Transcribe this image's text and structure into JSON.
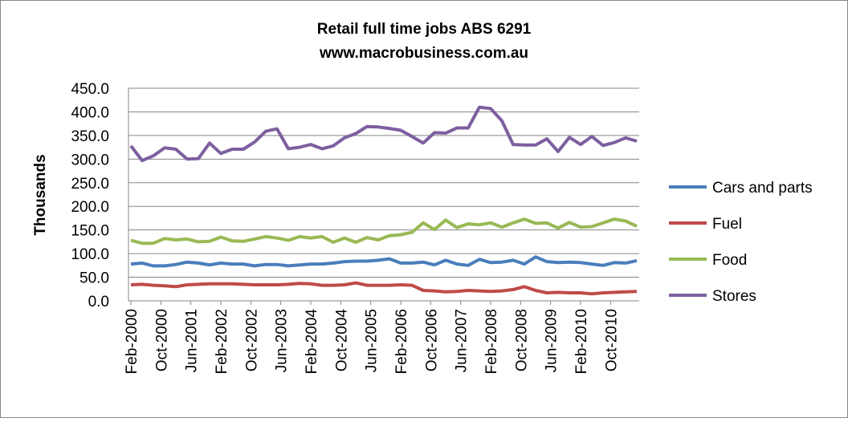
{
  "chart_data": {
    "type": "line",
    "title": "Retail full time jobs ABS 6291",
    "subtitle": "www.macrobusiness.com.au",
    "y_label": "Thousands",
    "x": [
      "2000-02",
      "2000-05",
      "2000-08",
      "2000-11",
      "2001-02",
      "2001-05",
      "2001-08",
      "2001-11",
      "2002-02",
      "2002-05",
      "2002-08",
      "2002-11",
      "2003-02",
      "2003-05",
      "2003-08",
      "2003-11",
      "2004-02",
      "2004-05",
      "2004-08",
      "2004-11",
      "2005-02",
      "2005-05",
      "2005-08",
      "2005-11",
      "2006-02",
      "2006-05",
      "2006-08",
      "2006-11",
      "2007-02",
      "2007-05",
      "2007-08",
      "2007-11",
      "2008-02",
      "2008-05",
      "2008-08",
      "2008-11",
      "2009-02",
      "2009-05",
      "2009-08",
      "2009-11",
      "2010-02",
      "2010-05",
      "2010-08",
      "2010-11",
      "2011-02",
      "2011-05"
    ],
    "xlim": [
      "2000-02",
      "2011-05"
    ],
    "xticks": [
      {
        "value": "2000-02",
        "label": "Feb-2000"
      },
      {
        "value": "2000-10",
        "label": "Oct-2000"
      },
      {
        "value": "2001-06",
        "label": "Jun-2001"
      },
      {
        "value": "2002-02",
        "label": "Feb-2002"
      },
      {
        "value": "2002-10",
        "label": "Oct-2002"
      },
      {
        "value": "2003-06",
        "label": "Jun-2003"
      },
      {
        "value": "2004-02",
        "label": "Feb-2004"
      },
      {
        "value": "2004-10",
        "label": "Oct-2004"
      },
      {
        "value": "2005-06",
        "label": "Jun-2005"
      },
      {
        "value": "2006-02",
        "label": "Feb-2006"
      },
      {
        "value": "2006-10",
        "label": "Oct-2006"
      },
      {
        "value": "2007-06",
        "label": "Jun-2007"
      },
      {
        "value": "2008-02",
        "label": "Feb-2008"
      },
      {
        "value": "2008-10",
        "label": "Oct-2008"
      },
      {
        "value": "2009-06",
        "label": "Jun-2009"
      },
      {
        "value": "2010-02",
        "label": "Feb-2010"
      },
      {
        "value": "2010-10",
        "label": "Oct-2010"
      }
    ],
    "ylim": [
      0,
      450
    ],
    "yticks": [
      {
        "value": 0,
        "label": "0.0"
      },
      {
        "value": 50,
        "label": "50.0"
      },
      {
        "value": 100,
        "label": "100.0"
      },
      {
        "value": 150,
        "label": "150.0"
      },
      {
        "value": 200,
        "label": "200.0"
      },
      {
        "value": 250,
        "label": "250.0"
      },
      {
        "value": 300,
        "label": "300.0"
      },
      {
        "value": 350,
        "label": "350.0"
      },
      {
        "value": 400,
        "label": "400.0"
      },
      {
        "value": 450,
        "label": "450.0"
      }
    ],
    "grid": true,
    "legend": "right",
    "series": [
      {
        "name": "Cars and parts",
        "color": "#4a7ebb",
        "values": [
          78,
          80,
          74,
          74,
          77,
          82,
          80,
          76,
          80,
          78,
          78,
          74,
          77,
          77,
          74,
          76,
          78,
          78,
          80,
          83,
          84,
          84,
          86,
          89,
          80,
          80,
          82,
          76,
          86,
          78,
          75,
          88,
          81,
          82,
          86,
          78,
          93,
          83,
          81,
          82,
          81,
          78,
          75,
          81,
          80,
          85
        ]
      },
      {
        "name": "Fuel",
        "color": "#be4b48",
        "values": [
          34,
          35,
          33,
          32,
          30,
          34,
          35,
          36,
          36,
          36,
          35,
          34,
          34,
          34,
          35,
          37,
          36,
          33,
          33,
          34,
          38,
          33,
          33,
          33,
          34,
          33,
          22,
          21,
          19,
          20,
          22,
          21,
          20,
          21,
          24,
          30,
          22,
          17,
          18,
          17,
          17,
          15,
          17,
          18,
          19,
          20
        ]
      },
      {
        "name": "Food",
        "color": "#98b954",
        "values": [
          128,
          122,
          122,
          132,
          129,
          131,
          125,
          126,
          135,
          127,
          126,
          131,
          136,
          133,
          128,
          136,
          133,
          136,
          124,
          133,
          124,
          134,
          129,
          138,
          140,
          145,
          165,
          151,
          171,
          155,
          163,
          161,
          165,
          156,
          165,
          173,
          164,
          165,
          154,
          166,
          156,
          157,
          165,
          173,
          169,
          158
        ]
      },
      {
        "name": "Stores",
        "color": "#7d5fa0",
        "values": [
          328,
          297,
          307,
          324,
          321,
          300,
          301,
          334,
          312,
          321,
          321,
          336,
          359,
          364,
          322,
          325,
          331,
          322,
          328,
          345,
          354,
          369,
          368,
          365,
          361,
          348,
          334,
          356,
          355,
          366,
          366,
          410,
          407,
          381,
          331,
          330,
          330,
          343,
          316,
          346,
          331,
          348,
          329,
          335,
          345,
          338
        ]
      }
    ]
  }
}
